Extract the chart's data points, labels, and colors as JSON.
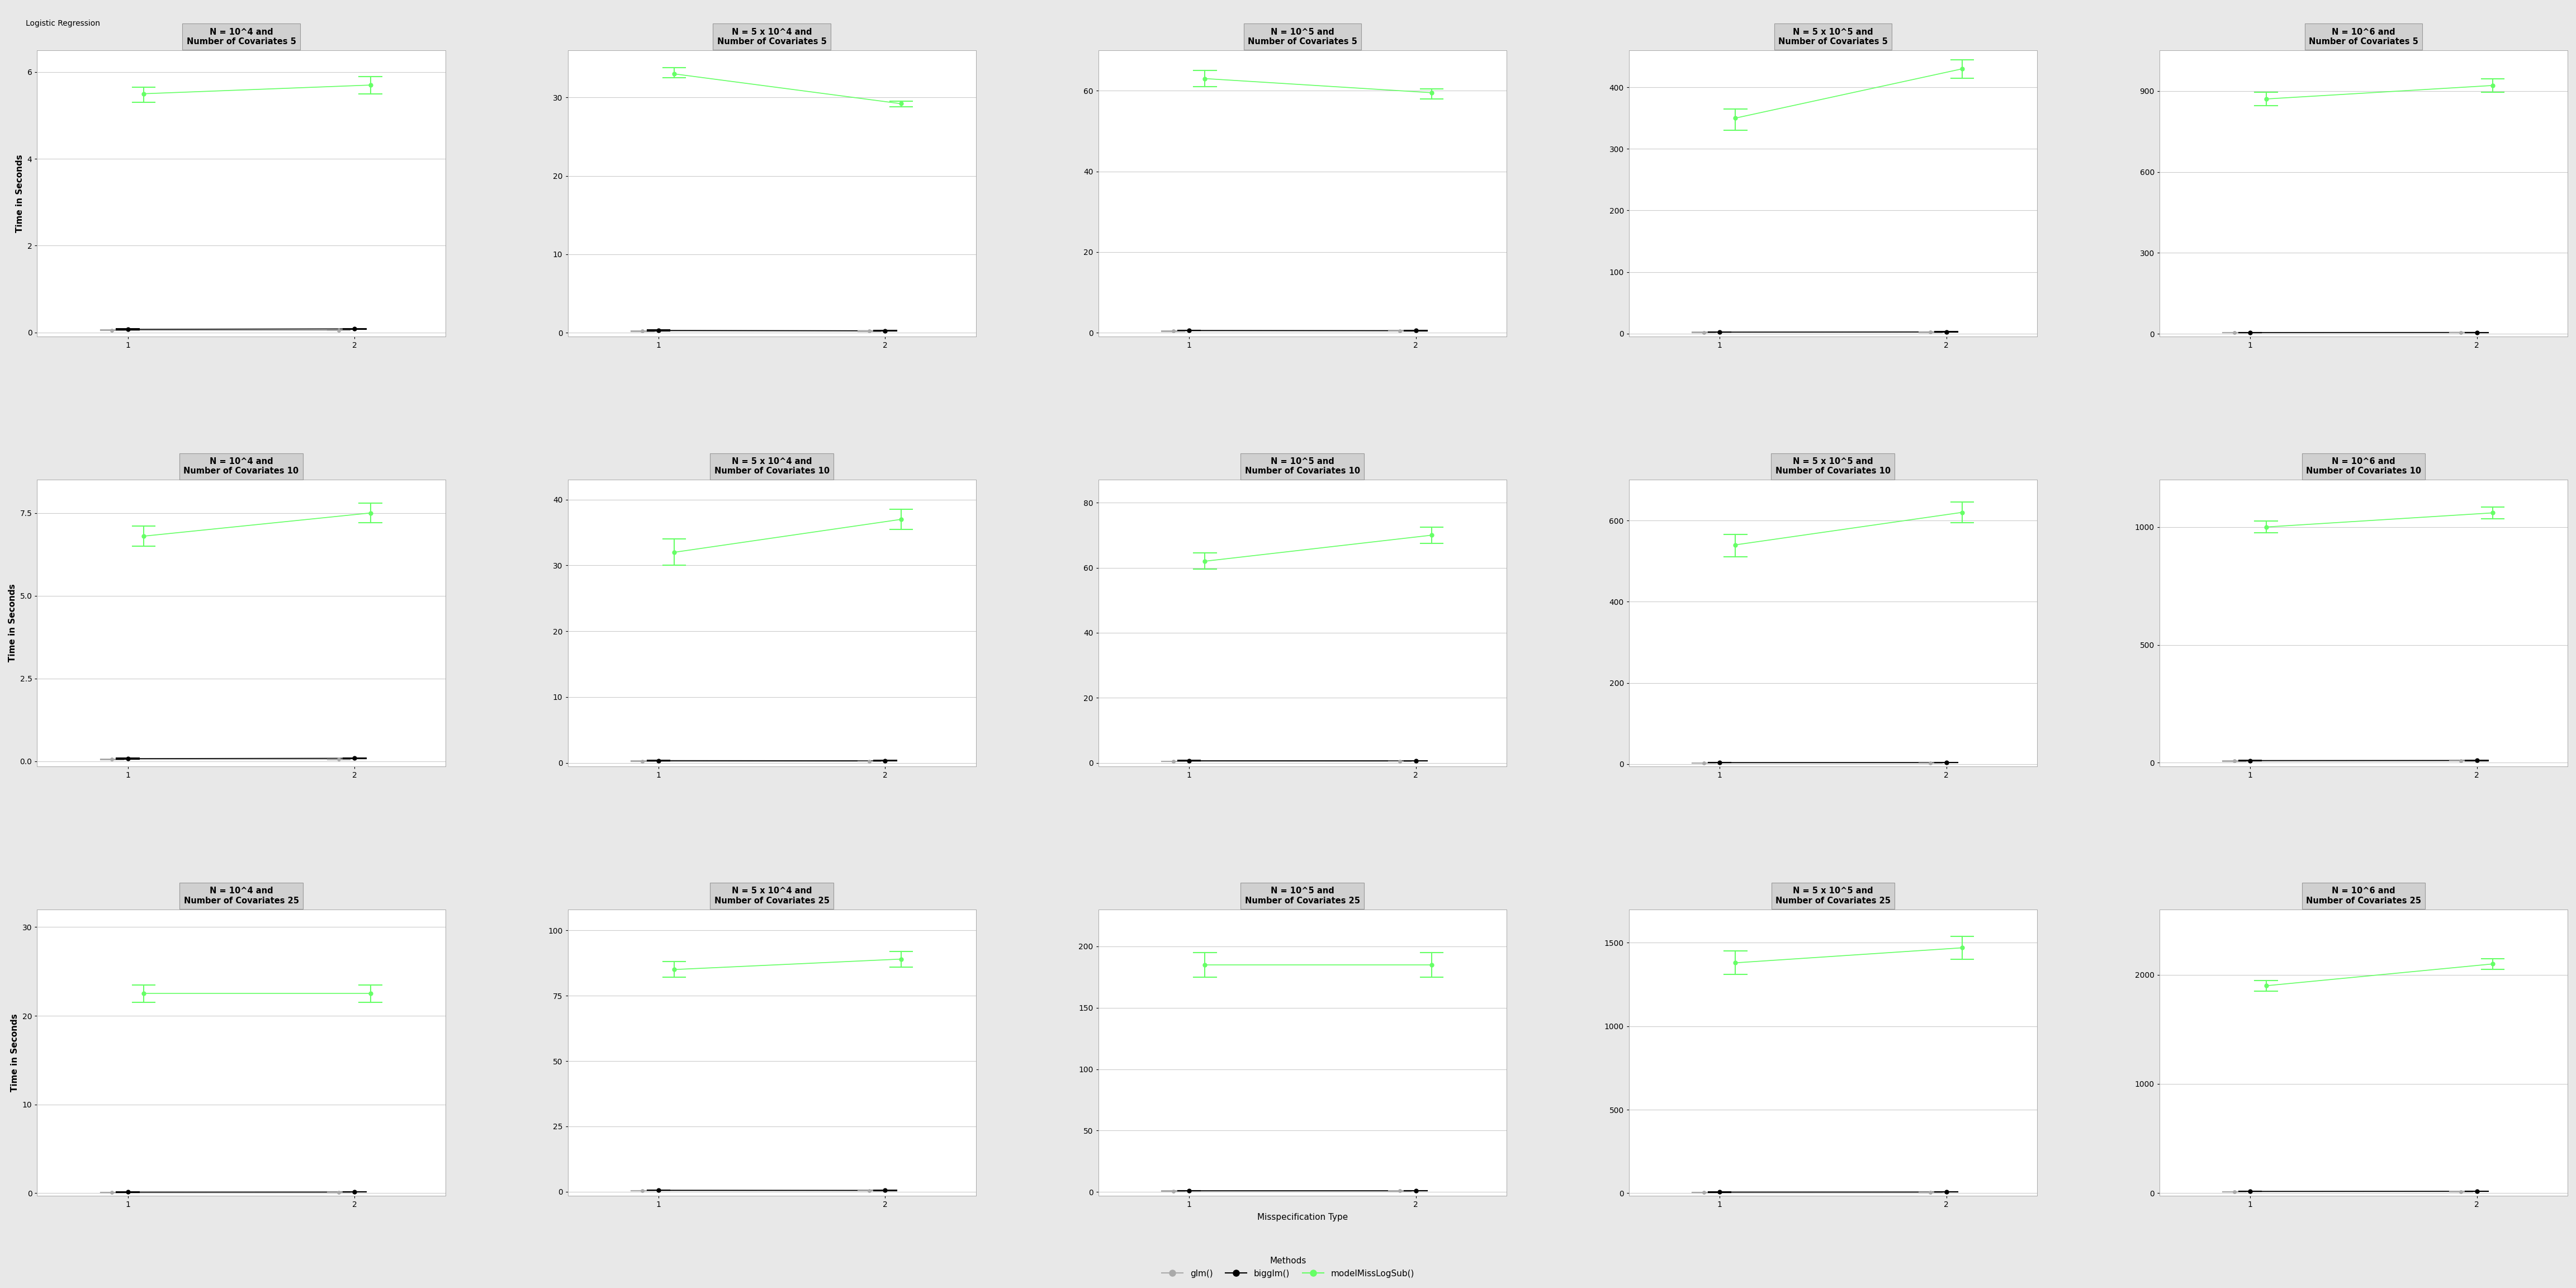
{
  "title": "Logistic Regression",
  "xlabel": "Misspecification Type",
  "ylabel": "Time in Seconds",
  "rows": [
    5,
    10,
    25
  ],
  "n_list": [
    "10^4",
    "5 x 10^4",
    "10^5",
    "5 x 10^5",
    "10^6"
  ],
  "data": {
    "r0c0": {
      "glm_mean": [
        0.05,
        0.05
      ],
      "glm_lo": [
        0.04,
        0.05
      ],
      "glm_hi": [
        0.06,
        0.06
      ],
      "bigglm_mean": [
        0.07,
        0.08
      ],
      "bigglm_lo": [
        0.06,
        0.07
      ],
      "bigglm_hi": [
        0.08,
        0.09
      ],
      "miss_mean": [
        5.5,
        5.7
      ],
      "miss_lo": [
        5.3,
        5.5
      ],
      "miss_hi": [
        5.65,
        5.9
      ],
      "yticks": [
        0,
        2,
        4,
        6
      ],
      "ylim": [
        -0.1,
        6.5
      ]
    },
    "r0c1": {
      "glm_mean": [
        0.2,
        0.2
      ],
      "glm_lo": [
        0.15,
        0.18
      ],
      "glm_hi": [
        0.25,
        0.23
      ],
      "bigglm_mean": [
        0.3,
        0.25
      ],
      "bigglm_lo": [
        0.25,
        0.22
      ],
      "bigglm_hi": [
        0.35,
        0.28
      ],
      "miss_mean": [
        33.0,
        29.2
      ],
      "miss_lo": [
        32.5,
        28.8
      ],
      "miss_hi": [
        33.8,
        29.5
      ],
      "yticks": [
        0,
        10,
        20,
        30
      ],
      "ylim": [
        -0.5,
        36
      ]
    },
    "r0c2": {
      "glm_mean": [
        0.4,
        0.4
      ],
      "glm_lo": [
        0.35,
        0.38
      ],
      "glm_hi": [
        0.45,
        0.43
      ],
      "bigglm_mean": [
        0.55,
        0.5
      ],
      "bigglm_lo": [
        0.5,
        0.45
      ],
      "bigglm_hi": [
        0.6,
        0.55
      ],
      "miss_mean": [
        63.0,
        59.5
      ],
      "miss_lo": [
        61.0,
        58.0
      ],
      "miss_hi": [
        65.0,
        60.5
      ],
      "yticks": [
        0,
        20,
        40,
        60
      ],
      "ylim": [
        -1.0,
        70
      ]
    },
    "r0c3": {
      "glm_mean": [
        2.0,
        2.2
      ],
      "glm_lo": [
        1.8,
        2.0
      ],
      "glm_hi": [
        2.2,
        2.4
      ],
      "bigglm_mean": [
        2.5,
        2.8
      ],
      "bigglm_lo": [
        2.3,
        2.6
      ],
      "bigglm_hi": [
        2.7,
        3.0
      ],
      "miss_mean": [
        350.0,
        430.0
      ],
      "miss_lo": [
        330.0,
        415.0
      ],
      "miss_hi": [
        365.0,
        445.0
      ],
      "yticks": [
        0,
        100,
        200,
        300,
        400
      ],
      "ylim": [
        -5,
        460
      ]
    },
    "r0c4": {
      "glm_mean": [
        4.5,
        4.8
      ],
      "glm_lo": [
        4.2,
        4.5
      ],
      "glm_hi": [
        4.8,
        5.1
      ],
      "bigglm_mean": [
        5.5,
        5.8
      ],
      "bigglm_lo": [
        5.2,
        5.5
      ],
      "bigglm_hi": [
        5.8,
        6.1
      ],
      "miss_mean": [
        870.0,
        920.0
      ],
      "miss_lo": [
        845.0,
        895.0
      ],
      "miss_hi": [
        895.0,
        945.0
      ],
      "yticks": [
        0,
        300,
        600,
        900
      ],
      "ylim": [
        -10,
        1050
      ]
    },
    "r1c0": {
      "glm_mean": [
        0.06,
        0.06
      ],
      "glm_lo": [
        0.05,
        0.05
      ],
      "glm_hi": [
        0.07,
        0.07
      ],
      "bigglm_mean": [
        0.08,
        0.09
      ],
      "bigglm_lo": [
        0.07,
        0.08
      ],
      "bigglm_hi": [
        0.09,
        0.1
      ],
      "miss_mean": [
        6.8,
        7.5
      ],
      "miss_lo": [
        6.5,
        7.2
      ],
      "miss_hi": [
        7.1,
        7.8
      ],
      "yticks": [
        0.0,
        2.5,
        5.0,
        7.5
      ],
      "ylim": [
        -0.15,
        8.5
      ]
    },
    "r1c1": {
      "glm_mean": [
        0.25,
        0.25
      ],
      "glm_lo": [
        0.22,
        0.23
      ],
      "glm_hi": [
        0.28,
        0.27
      ],
      "bigglm_mean": [
        0.35,
        0.33
      ],
      "bigglm_lo": [
        0.32,
        0.3
      ],
      "bigglm_hi": [
        0.38,
        0.36
      ],
      "miss_mean": [
        32.0,
        37.0
      ],
      "miss_lo": [
        30.0,
        35.5
      ],
      "miss_hi": [
        34.0,
        38.5
      ],
      "yticks": [
        0,
        10,
        20,
        30,
        40
      ],
      "ylim": [
        -0.5,
        43
      ]
    },
    "r1c2": {
      "glm_mean": [
        0.5,
        0.5
      ],
      "glm_lo": [
        0.45,
        0.45
      ],
      "glm_hi": [
        0.55,
        0.55
      ],
      "bigglm_mean": [
        0.7,
        0.68
      ],
      "bigglm_lo": [
        0.65,
        0.63
      ],
      "bigglm_hi": [
        0.75,
        0.73
      ],
      "miss_mean": [
        62.0,
        70.0
      ],
      "miss_lo": [
        59.5,
        67.5
      ],
      "miss_hi": [
        64.5,
        72.5
      ],
      "yticks": [
        0,
        20,
        40,
        60,
        80
      ],
      "ylim": [
        -1,
        87
      ]
    },
    "r1c3": {
      "glm_mean": [
        3.0,
        3.2
      ],
      "glm_lo": [
        2.8,
        3.0
      ],
      "glm_hi": [
        3.2,
        3.4
      ],
      "bigglm_mean": [
        4.0,
        4.2
      ],
      "bigglm_lo": [
        3.8,
        4.0
      ],
      "bigglm_hi": [
        4.2,
        4.4
      ],
      "miss_mean": [
        540.0,
        620.0
      ],
      "miss_lo": [
        510.0,
        595.0
      ],
      "miss_hi": [
        565.0,
        645.0
      ],
      "yticks": [
        0,
        200,
        400,
        600
      ],
      "ylim": [
        -5,
        700
      ]
    },
    "r1c4": {
      "glm_mean": [
        7.0,
        7.5
      ],
      "glm_lo": [
        6.5,
        7.0
      ],
      "glm_hi": [
        7.5,
        8.0
      ],
      "bigglm_mean": [
        9.0,
        9.5
      ],
      "bigglm_lo": [
        8.5,
        9.0
      ],
      "bigglm_hi": [
        9.5,
        10.0
      ],
      "miss_mean": [
        1000.0,
        1060.0
      ],
      "miss_lo": [
        975.0,
        1035.0
      ],
      "miss_hi": [
        1025.0,
        1085.0
      ],
      "yticks": [
        0,
        500,
        1000
      ],
      "ylim": [
        -15,
        1200
      ]
    },
    "r2c0": {
      "glm_mean": [
        0.08,
        0.09
      ],
      "glm_lo": [
        0.07,
        0.08
      ],
      "glm_hi": [
        0.09,
        0.1
      ],
      "bigglm_mean": [
        0.11,
        0.12
      ],
      "bigglm_lo": [
        0.1,
        0.11
      ],
      "bigglm_hi": [
        0.12,
        0.13
      ],
      "miss_mean": [
        22.5,
        22.5
      ],
      "miss_lo": [
        21.5,
        21.5
      ],
      "miss_hi": [
        23.5,
        23.5
      ],
      "yticks": [
        0,
        10,
        20,
        30
      ],
      "ylim": [
        -0.3,
        32
      ]
    },
    "r2c1": {
      "glm_mean": [
        0.4,
        0.4
      ],
      "glm_lo": [
        0.35,
        0.38
      ],
      "glm_hi": [
        0.45,
        0.43
      ],
      "bigglm_mean": [
        0.6,
        0.55
      ],
      "bigglm_lo": [
        0.55,
        0.5
      ],
      "bigglm_hi": [
        0.65,
        0.6
      ],
      "miss_mean": [
        85.0,
        89.0
      ],
      "miss_lo": [
        82.0,
        86.0
      ],
      "miss_hi": [
        88.0,
        92.0
      ],
      "yticks": [
        0,
        25,
        50,
        75,
        100
      ],
      "ylim": [
        -1.5,
        108
      ]
    },
    "r2c2": {
      "glm_mean": [
        0.8,
        0.85
      ],
      "glm_lo": [
        0.75,
        0.8
      ],
      "glm_hi": [
        0.85,
        0.9
      ],
      "bigglm_mean": [
        1.1,
        1.1
      ],
      "bigglm_lo": [
        1.0,
        1.0
      ],
      "bigglm_hi": [
        1.2,
        1.2
      ],
      "miss_mean": [
        185.0,
        185.0
      ],
      "miss_lo": [
        175.0,
        175.0
      ],
      "miss_hi": [
        195.0,
        195.0
      ],
      "yticks": [
        0,
        50,
        100,
        150,
        200
      ],
      "ylim": [
        -3,
        230
      ]
    },
    "r2c3": {
      "glm_mean": [
        5.0,
        5.5
      ],
      "glm_lo": [
        4.5,
        5.0
      ],
      "glm_hi": [
        5.5,
        6.0
      ],
      "bigglm_mean": [
        7.0,
        7.5
      ],
      "bigglm_lo": [
        6.5,
        7.0
      ],
      "bigglm_hi": [
        7.5,
        8.0
      ],
      "miss_mean": [
        1380.0,
        1470.0
      ],
      "miss_lo": [
        1310.0,
        1400.0
      ],
      "miss_hi": [
        1450.0,
        1540.0
      ],
      "yticks": [
        0,
        500,
        1000,
        1500
      ],
      "ylim": [
        -15,
        1700
      ]
    },
    "r2c4": {
      "glm_mean": [
        12.0,
        13.0
      ],
      "glm_lo": [
        11.5,
        12.5
      ],
      "glm_hi": [
        12.5,
        13.5
      ],
      "bigglm_mean": [
        15.0,
        16.0
      ],
      "bigglm_lo": [
        14.5,
        15.5
      ],
      "bigglm_hi": [
        15.5,
        16.5
      ],
      "miss_mean": [
        1900.0,
        2100.0
      ],
      "miss_lo": [
        1850.0,
        2050.0
      ],
      "miss_hi": [
        1950.0,
        2150.0
      ],
      "yticks": [
        0,
        1000,
        2000
      ],
      "ylim": [
        -25,
        2600
      ]
    }
  },
  "glm_color": "#aaaaaa",
  "bigglm_color": "#000000",
  "miss_color": "#66FF66",
  "bg_color": "#e8e8e8",
  "plot_bg": "#ffffff",
  "title_bg": "#d0d0d0"
}
